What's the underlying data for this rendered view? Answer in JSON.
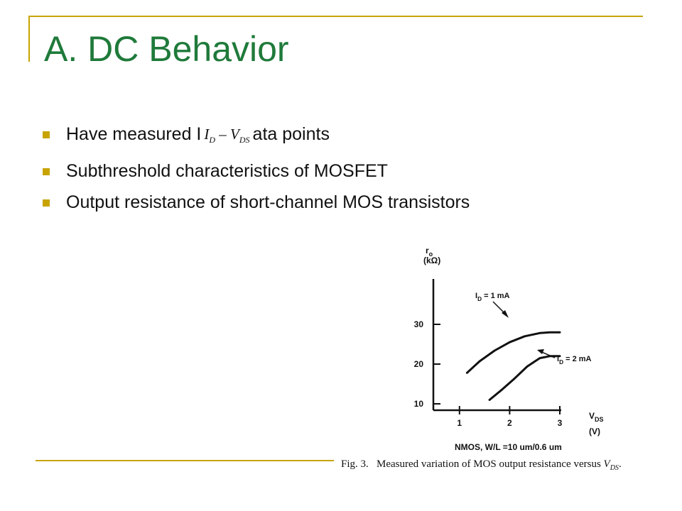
{
  "slide": {
    "title": "A.  DC Behavior",
    "accent_color": "#c8a400",
    "title_color": "#1f7a3a",
    "bullets": [
      {
        "pre": "Have measured I",
        "formula_i": "I",
        "formula_i_sub": "D",
        "formula_dash": " – ",
        "formula_v": "V",
        "formula_v_sub": "DS",
        "post": "ata points"
      },
      {
        "text": "Subthreshold characteristics of MOSFET"
      },
      {
        "text": "Output resistance of short-channel MOS transistors"
      }
    ]
  },
  "figure": {
    "caption": {
      "prefix": "Fig. 3.",
      "text": "Measured variation of MOS output resistance versus",
      "var": "V",
      "var_sub": "DS",
      "suffix": "."
    },
    "below_axis_label": "NMOS, W/L =10 um/0.6 um",
    "annotations": [
      {
        "label": "I",
        "sub": "D",
        "value": " = 1 mA"
      },
      {
        "label": "I",
        "sub": "D",
        "value": " = 2 mA"
      }
    ]
  },
  "chart_data": {
    "type": "line",
    "ylabel": "r",
    "ylabel_sub": "o",
    "yunit": "(kΩ)",
    "xlabel": "V",
    "xlabel_sub": "DS",
    "xunit": "(V)",
    "xlim": [
      0.55,
      3.0
    ],
    "ylim": [
      8.0,
      31.0
    ],
    "x_ticks": [
      "1",
      "2",
      "3"
    ],
    "y_ticks": [
      "10",
      "20",
      "30"
    ],
    "grid": false,
    "series": [
      {
        "name": "ID = 1 mA",
        "x": [
          1.15,
          1.4,
          1.7,
          2.0,
          2.3,
          2.6,
          2.8,
          3.0
        ],
        "y": [
          17.8,
          20.7,
          23.4,
          25.5,
          27.0,
          27.8,
          28.0,
          28.0
        ]
      },
      {
        "name": "ID = 2 mA",
        "x": [
          1.6,
          1.85,
          2.1,
          2.35,
          2.6,
          2.8,
          3.0
        ],
        "y": [
          11.0,
          13.6,
          16.4,
          19.4,
          21.5,
          22.0,
          22.0
        ]
      }
    ]
  }
}
